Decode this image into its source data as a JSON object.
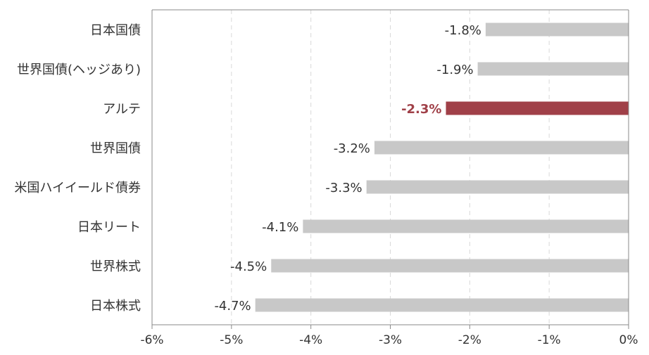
{
  "chart_data": {
    "type": "bar",
    "orientation": "horizontal",
    "categories": [
      "日本国債",
      "世界国債(ヘッジあり)",
      "アルテ",
      "世界国債",
      "米国ハイイールド債券",
      "日本リート",
      "世界株式",
      "日本株式"
    ],
    "values": [
      -1.8,
      -1.9,
      -2.3,
      -3.2,
      -3.3,
      -4.1,
      -4.5,
      -4.7
    ],
    "data_labels": [
      "-1.8%",
      "-1.9%",
      "-2.3%",
      "-3.2%",
      "-3.3%",
      "-4.1%",
      "-4.5%",
      "-4.7%"
    ],
    "highlight_index": 2,
    "xlim": [
      -6,
      0
    ],
    "x_ticks": [
      -6,
      -5,
      -4,
      -3,
      -2,
      -1,
      0
    ],
    "x_tick_labels": [
      "-6%",
      "-5%",
      "-4%",
      "-3%",
      "-2%",
      "-1%",
      "0%"
    ],
    "grid": "vertical dashed",
    "title": "",
    "xlabel": "",
    "ylabel": "",
    "colors": {
      "bar": "#c8c8c8",
      "highlight": "#a04048",
      "text": "#333333",
      "highlight_text": "#a04048",
      "grid": "#d9d9d9",
      "axis": "#888888"
    }
  }
}
